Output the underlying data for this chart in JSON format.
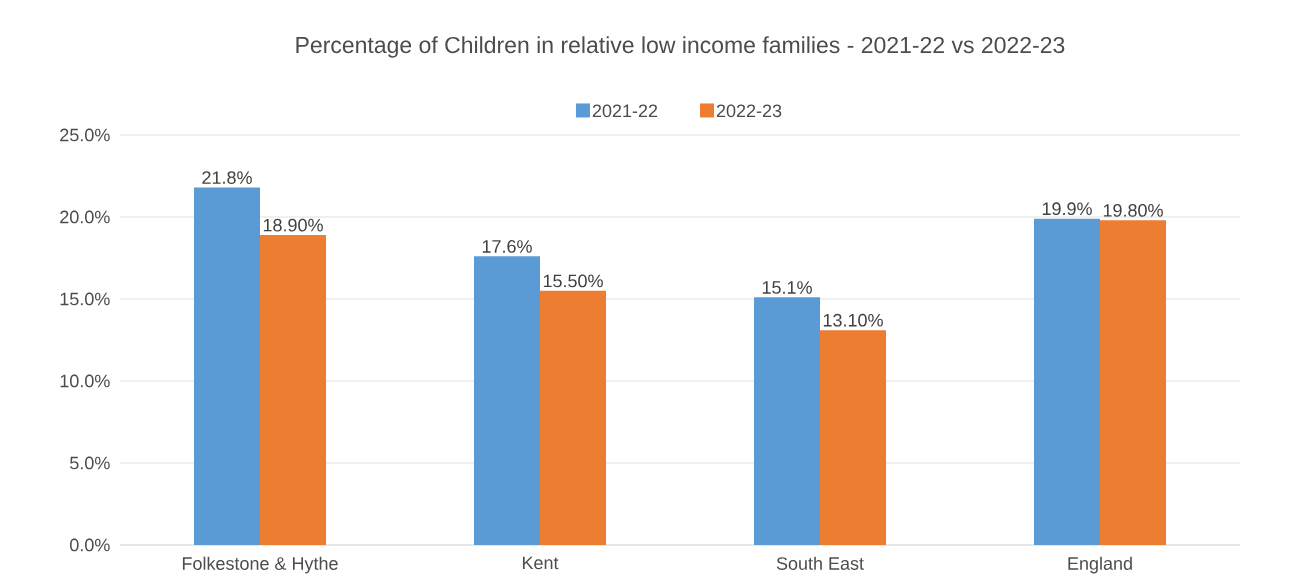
{
  "chart_data": {
    "type": "bar",
    "title": "Percentage of Children in relative low income families - 2021-22 vs 2022-23",
    "categories": [
      "Folkestone & Hythe",
      "Kent",
      "South East",
      "England"
    ],
    "series": [
      {
        "name": "2021-22",
        "color": "#5b9bd5",
        "values": [
          21.8,
          17.6,
          15.1,
          19.9
        ],
        "value_labels": [
          "21.8%",
          "17.6%",
          "15.1%",
          "19.9%"
        ]
      },
      {
        "name": "2022-23",
        "color": "#ed7d31",
        "values": [
          18.9,
          15.5,
          13.1,
          19.8
        ],
        "value_labels": [
          "18.90%",
          "15.50%",
          "13.10%",
          "19.80%"
        ]
      }
    ],
    "ylim": [
      0,
      25
    ],
    "yticks": [
      {
        "value": 0,
        "label": "0.0%"
      },
      {
        "value": 5,
        "label": "5.0%"
      },
      {
        "value": 10,
        "label": "10.0%"
      },
      {
        "value": 15,
        "label": "15.0%"
      },
      {
        "value": 20,
        "label": "20.0%"
      },
      {
        "value": 25,
        "label": "25.0%"
      }
    ],
    "grid": "y",
    "legend": "top"
  }
}
